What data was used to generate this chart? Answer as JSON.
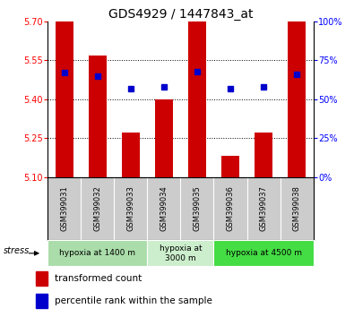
{
  "title": "GDS4929 / 1447843_at",
  "samples": [
    "GSM399031",
    "GSM399032",
    "GSM399033",
    "GSM399034",
    "GSM399035",
    "GSM399036",
    "GSM399037",
    "GSM399038"
  ],
  "red_values": [
    5.7,
    5.57,
    5.27,
    5.4,
    5.7,
    5.18,
    5.27,
    5.7
  ],
  "blue_values": [
    67,
    65,
    57,
    58,
    68,
    57,
    58,
    66
  ],
  "y_min": 5.1,
  "y_max": 5.7,
  "y_ticks": [
    5.1,
    5.25,
    5.4,
    5.55,
    5.7
  ],
  "y_right_ticks": [
    0,
    25,
    50,
    75,
    100
  ],
  "groups": [
    {
      "label": "hypoxia at 1400 m",
      "start": 0,
      "end": 3,
      "color": "#aaddaa"
    },
    {
      "label": "hypoxia at\n3000 m",
      "start": 3,
      "end": 5,
      "color": "#cceecc"
    },
    {
      "label": "hypoxia at 4500 m",
      "start": 5,
      "end": 8,
      "color": "#44cc44"
    }
  ],
  "bar_color": "#cc0000",
  "dot_color": "#0000cc",
  "bar_width": 0.55,
  "background_color": "#ffffff",
  "title_fontsize": 10,
  "tick_fontsize": 7,
  "label_fontsize": 7,
  "legend_fontsize": 7.5,
  "stress_text": "stress",
  "legend_items": [
    "transformed count",
    "percentile rank within the sample"
  ],
  "gridline_ticks": [
    5.25,
    5.4,
    5.55
  ]
}
